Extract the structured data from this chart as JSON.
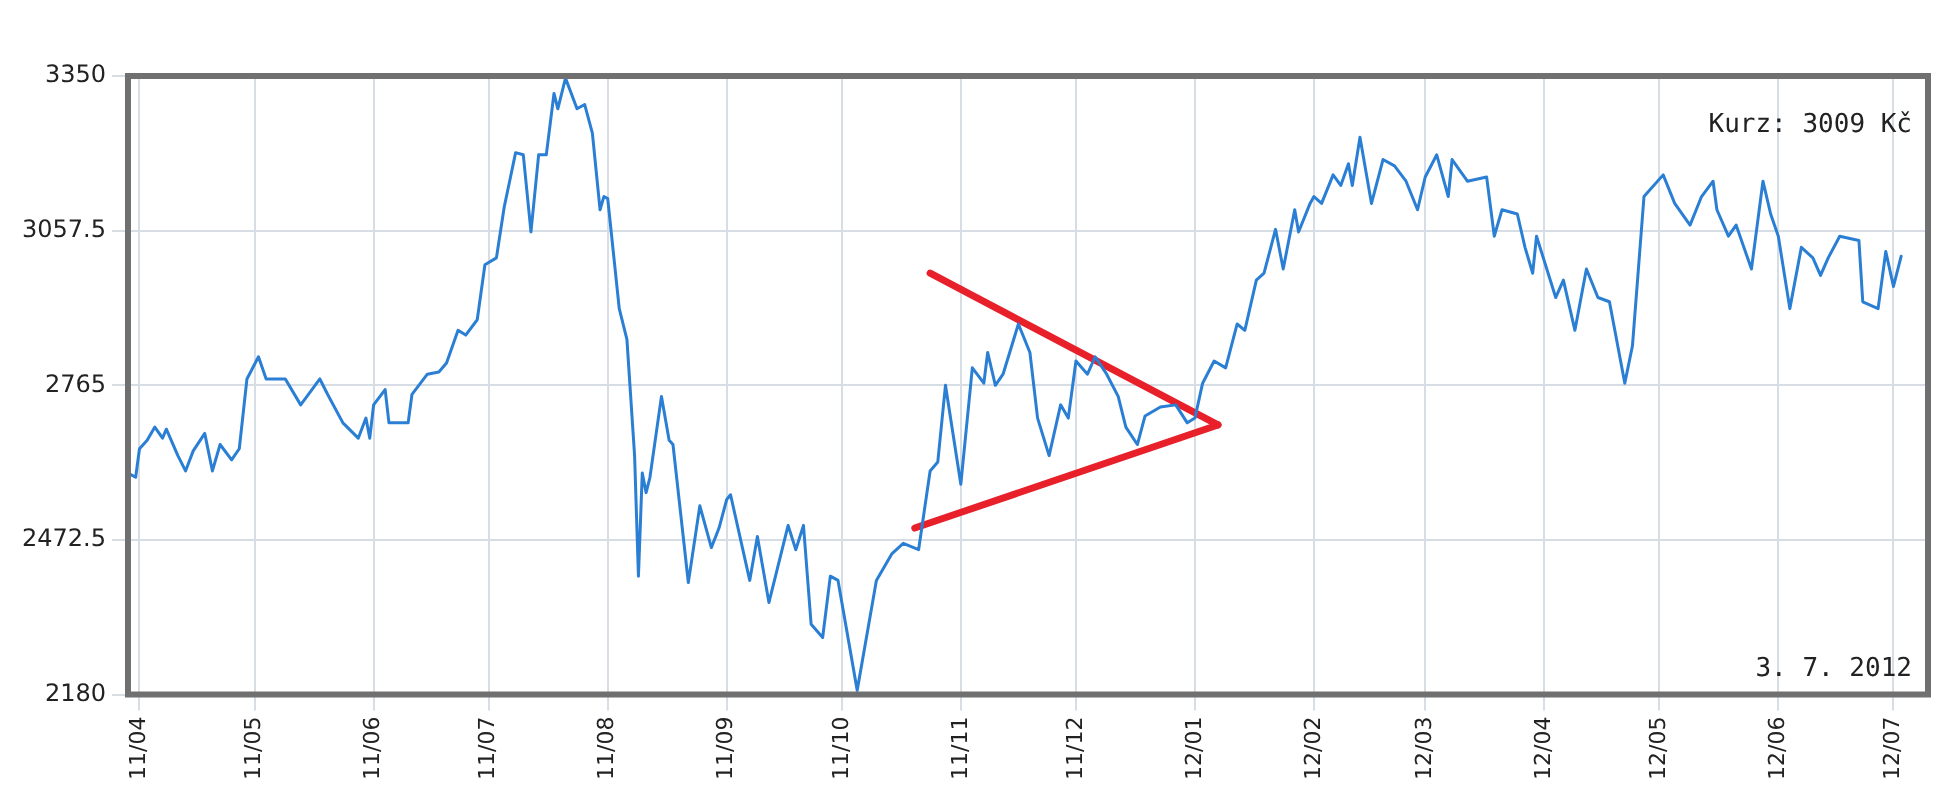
{
  "chart_data": {
    "type": "line",
    "xlim": [
      "2011-03-29",
      "2012-07-10"
    ],
    "ylim": [
      2180,
      3350
    ],
    "yticks": [
      2180,
      2472.5,
      2765,
      3057.5,
      3350
    ],
    "xticks": [
      {
        "value": "2011-04-01",
        "label": "11/04"
      },
      {
        "value": "2011-05-01",
        "label": "11/05"
      },
      {
        "value": "2011-06-01",
        "label": "11/06"
      },
      {
        "value": "2011-07-01",
        "label": "11/07"
      },
      {
        "value": "2011-08-01",
        "label": "11/08"
      },
      {
        "value": "2011-09-01",
        "label": "11/09"
      },
      {
        "value": "2011-10-01",
        "label": "11/10"
      },
      {
        "value": "2011-11-01",
        "label": "11/11"
      },
      {
        "value": "2011-12-01",
        "label": "11/12"
      },
      {
        "value": "2012-01-01",
        "label": "12/01"
      },
      {
        "value": "2012-02-01",
        "label": "12/02"
      },
      {
        "value": "2012-03-01",
        "label": "12/03"
      },
      {
        "value": "2012-04-01",
        "label": "12/04"
      },
      {
        "value": "2012-05-01",
        "label": "12/05"
      },
      {
        "value": "2012-06-01",
        "label": "12/06"
      },
      {
        "value": "2012-07-01",
        "label": "12/07"
      }
    ],
    "grid": true,
    "annotations": [
      "Kurz: 3009 Kč",
      "3. 7. 2012"
    ],
    "series": [
      {
        "color": "#2a7fd4",
        "x": [
          "2011-03-29",
          "2011-03-31",
          "2011-04-01",
          "2011-04-03",
          "2011-04-05",
          "2011-04-07",
          "2011-04-08",
          "2011-04-11",
          "2011-04-13",
          "2011-04-15",
          "2011-04-18",
          "2011-04-20",
          "2011-04-22",
          "2011-04-25",
          "2011-04-27",
          "2011-04-29",
          "2011-05-02",
          "2011-05-04",
          "2011-05-09",
          "2011-05-13",
          "2011-05-18",
          "2011-05-20",
          "2011-05-24",
          "2011-05-28",
          "2011-05-30",
          "2011-05-31",
          "2011-06-01",
          "2011-06-04",
          "2011-06-05",
          "2011-06-10",
          "2011-06-11",
          "2011-06-15",
          "2011-06-18",
          "2011-06-20",
          "2011-06-23",
          "2011-06-25",
          "2011-06-28",
          "2011-06-30",
          "2011-07-03",
          "2011-07-05",
          "2011-07-08",
          "2011-07-10",
          "2011-07-12",
          "2011-07-14",
          "2011-07-16",
          "2011-07-18",
          "2011-07-19",
          "2011-07-21",
          "2011-07-24",
          "2011-07-26",
          "2011-07-28",
          "2011-07-30",
          "2011-07-31",
          "2011-08-01",
          "2011-08-04",
          "2011-08-06",
          "2011-08-08",
          "2011-08-09",
          "2011-08-10",
          "2011-08-11",
          "2011-08-12",
          "2011-08-15",
          "2011-08-17",
          "2011-08-18",
          "2011-08-22",
          "2011-08-25",
          "2011-08-28",
          "2011-08-30",
          "2011-09-01",
          "2011-09-02",
          "2011-09-07",
          "2011-09-09",
          "2011-09-12",
          "2011-09-17",
          "2011-09-19",
          "2011-09-21",
          "2011-09-23",
          "2011-09-26",
          "2011-09-28",
          "2011-09-30",
          "2011-10-05",
          "2011-10-10",
          "2011-10-14",
          "2011-10-17",
          "2011-10-21",
          "2011-10-24",
          "2011-10-26",
          "2011-10-28",
          "2011-11-01",
          "2011-11-04",
          "2011-11-07",
          "2011-11-08",
          "2011-11-10",
          "2011-11-12",
          "2011-11-16",
          "2011-11-19",
          "2011-11-21",
          "2011-11-24",
          "2011-11-27",
          "2011-11-29",
          "2011-12-01",
          "2011-12-04",
          "2011-12-06",
          "2011-12-09",
          "2011-12-12",
          "2011-12-14",
          "2011-12-17",
          "2011-12-19",
          "2011-12-23",
          "2011-12-27",
          "2011-12-30",
          "2012-01-01",
          "2012-01-03",
          "2012-01-06",
          "2012-01-09",
          "2012-01-12",
          "2012-01-14",
          "2012-01-17",
          "2012-01-19",
          "2012-01-22",
          "2012-01-24",
          "2012-01-27",
          "2012-01-28",
          "2012-01-31",
          "2012-02-01",
          "2012-02-03",
          "2012-02-06",
          "2012-02-08",
          "2012-02-10",
          "2012-02-11",
          "2012-02-13",
          "2012-02-16",
          "2012-02-19",
          "2012-02-22",
          "2012-02-25",
          "2012-02-28",
          "2012-03-01",
          "2012-03-04",
          "2012-03-07",
          "2012-03-08",
          "2012-03-12",
          "2012-03-17",
          "2012-03-19",
          "2012-03-21",
          "2012-03-25",
          "2012-03-27",
          "2012-03-29",
          "2012-03-30",
          "2012-04-04",
          "2012-04-06",
          "2012-04-09",
          "2012-04-12",
          "2012-04-15",
          "2012-04-18",
          "2012-04-22",
          "2012-04-24",
          "2012-04-27",
          "2012-05-02",
          "2012-05-05",
          "2012-05-09",
          "2012-05-12",
          "2012-05-15",
          "2012-05-16",
          "2012-05-19",
          "2012-05-21",
          "2012-05-25",
          "2012-05-28",
          "2012-05-30",
          "2012-06-01",
          "2012-06-04",
          "2012-06-07",
          "2012-06-10",
          "2012-06-12",
          "2012-06-14",
          "2012-06-17",
          "2012-06-22",
          "2012-06-23",
          "2012-06-27",
          "2012-06-29",
          "2012-07-01",
          "2012-07-03"
        ],
        "values": [
          2599,
          2591,
          2645,
          2661,
          2686,
          2665,
          2682,
          2632,
          2603,
          2641,
          2674,
          2603,
          2653,
          2624,
          2645,
          2777,
          2819,
          2777,
          2777,
          2728,
          2777,
          2748,
          2694,
          2665,
          2703,
          2665,
          2728,
          2757,
          2694,
          2694,
          2748,
          2786,
          2790,
          2807,
          2869,
          2860,
          2889,
          2993,
          3006,
          3101,
          3205,
          3201,
          3055,
          3201,
          3201,
          3317,
          3288,
          3346,
          3288,
          3296,
          3242,
          3097,
          3122,
          3118,
          2910,
          2852,
          2632,
          2404,
          2599,
          2562,
          2591,
          2744,
          2661,
          2653,
          2392,
          2537,
          2458,
          2495,
          2549,
          2558,
          2396,
          2479,
          2354,
          2500,
          2454,
          2500,
          2313,
          2288,
          2404,
          2396,
          2188,
          2396,
          2446,
          2466,
          2454,
          2603,
          2620,
          2765,
          2578,
          2798,
          2769,
          2827,
          2765,
          2786,
          2881,
          2827,
          2703,
          2632,
          2728,
          2703,
          2811,
          2786,
          2819,
          2786,
          2744,
          2686,
          2653,
          2707,
          2724,
          2728,
          2694,
          2703,
          2769,
          2811,
          2798,
          2881,
          2869,
          2964,
          2977,
          3060,
          2985,
          3097,
          3055,
          3109,
          3122,
          3109,
          3163,
          3143,
          3184,
          3143,
          3234,
          3109,
          3192,
          3180,
          3151,
          3097,
          3159,
          3201,
          3122,
          3192,
          3151,
          3159,
          3047,
          3097,
          3089,
          3026,
          2977,
          3047,
          2931,
          2964,
          2869,
          2985,
          2931,
          2923,
          2769,
          2840,
          3122,
          3163,
          3109,
          3068,
          3122,
          3151,
          3097,
          3047,
          3068,
          2985,
          3151,
          3089,
          3047,
          2910,
          3026,
          3006,
          2973,
          3006,
          3047,
          3039,
          2923,
          2910,
          3018,
          2952,
          3009
        ]
      },
      {
        "type": "line",
        "color": "#e8202a",
        "x": [
          "2011-10-24",
          "2012-01-07"
        ],
        "values": [
          2977,
          2690
        ]
      },
      {
        "type": "line",
        "color": "#e8202a",
        "x": [
          "2011-10-20",
          "2012-01-07"
        ],
        "values": [
          2495,
          2690
        ]
      }
    ]
  }
}
